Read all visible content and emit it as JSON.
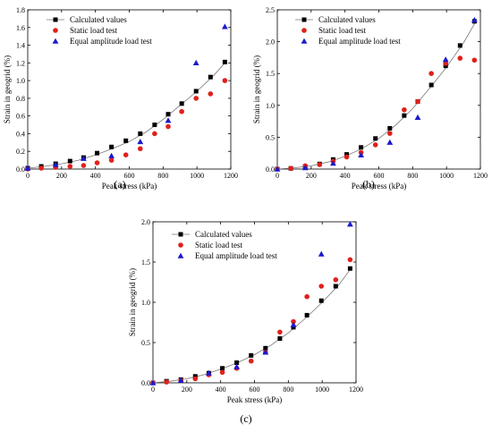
{
  "chart_data": [
    {
      "type": "scatter",
      "panel_label": "(a)",
      "xlabel": "Peak stress (kPa)",
      "ylabel": "Strain in geogrid (%)",
      "xlim": [
        0,
        1200
      ],
      "ylim": [
        0,
        1.8
      ],
      "xticks": [
        "0",
        "200",
        "400",
        "600",
        "800",
        "1000",
        "1200"
      ],
      "yticks": [
        "0.0",
        "0.2",
        "0.4",
        "0.6",
        "0.8",
        "1.0",
        "1.2",
        "1.4",
        "1.6",
        "1.8"
      ],
      "legend_position": "top-left",
      "grid": false,
      "fit_curve": {
        "x": [
          0,
          100,
          200,
          300,
          400,
          500,
          600,
          700,
          800,
          900,
          1000,
          1100,
          1170
        ],
        "y": [
          0.01,
          0.03,
          0.06,
          0.1,
          0.16,
          0.23,
          0.31,
          0.42,
          0.56,
          0.72,
          0.88,
          1.06,
          1.21
        ]
      },
      "series": [
        {
          "name": "Calculated values",
          "marker": "square",
          "color": "#000000",
          "x": [
            0,
            80,
            165,
            250,
            330,
            410,
            495,
            580,
            665,
            750,
            830,
            910,
            995,
            1080,
            1165
          ],
          "y": [
            0.01,
            0.03,
            0.06,
            0.09,
            0.13,
            0.18,
            0.25,
            0.32,
            0.4,
            0.5,
            0.62,
            0.74,
            0.88,
            1.04,
            1.21
          ]
        },
        {
          "name": "Static load test",
          "marker": "circle",
          "color": "#e0201c",
          "x": [
            0,
            80,
            165,
            250,
            330,
            410,
            495,
            580,
            665,
            750,
            830,
            910,
            995,
            1080,
            1165
          ],
          "y": [
            0.0,
            0.01,
            0.02,
            0.03,
            0.04,
            0.07,
            0.1,
            0.16,
            0.23,
            0.4,
            0.48,
            0.65,
            0.8,
            0.85,
            1.0
          ]
        },
        {
          "name": "Equal amplitude load test",
          "marker": "triangle",
          "color": "#1a1acc",
          "x": [
            0,
            165,
            330,
            495,
            665,
            830,
            995,
            1165
          ],
          "y": [
            0.01,
            0.05,
            0.12,
            0.15,
            0.31,
            0.55,
            1.2,
            1.61
          ]
        }
      ]
    },
    {
      "type": "scatter",
      "panel_label": "(b)",
      "xlabel": "Peak stress (kPa)",
      "ylabel": "Strain in geogrid (%)",
      "xlim": [
        0,
        1200
      ],
      "ylim": [
        0,
        2.5
      ],
      "xticks": [
        "0",
        "200",
        "400",
        "600",
        "800",
        "1000",
        "1200"
      ],
      "yticks": [
        "0.0",
        "0.5",
        "1.0",
        "1.5",
        "2.0",
        "2.5"
      ],
      "legend_position": "top-left",
      "grid": false,
      "fit_curve": {
        "x": [
          0,
          100,
          200,
          300,
          400,
          500,
          600,
          700,
          800,
          900,
          1000,
          1100,
          1170
        ],
        "y": [
          0.0,
          0.02,
          0.05,
          0.11,
          0.2,
          0.32,
          0.48,
          0.69,
          0.95,
          1.27,
          1.6,
          1.98,
          2.3
        ]
      },
      "series": [
        {
          "name": "Calculated values",
          "marker": "square",
          "color": "#000000",
          "x": [
            0,
            80,
            165,
            250,
            330,
            410,
            495,
            580,
            665,
            750,
            830,
            910,
            995,
            1080,
            1165
          ],
          "y": [
            0.0,
            0.01,
            0.04,
            0.08,
            0.15,
            0.23,
            0.34,
            0.48,
            0.64,
            0.84,
            1.06,
            1.32,
            1.62,
            1.94,
            2.32
          ]
        },
        {
          "name": "Static load test",
          "marker": "circle",
          "color": "#e0201c",
          "x": [
            0,
            80,
            165,
            250,
            330,
            410,
            495,
            580,
            665,
            750,
            830,
            910,
            995,
            1080,
            1165
          ],
          "y": [
            0.0,
            0.01,
            0.05,
            0.07,
            0.12,
            0.19,
            0.26,
            0.38,
            0.56,
            0.93,
            1.06,
            1.5,
            1.66,
            1.74,
            1.71
          ]
        },
        {
          "name": "Equal amplitude load test",
          "marker": "triangle",
          "color": "#1a1acc",
          "x": [
            0,
            165,
            330,
            495,
            665,
            830,
            995,
            1165
          ],
          "y": [
            0.0,
            0.02,
            0.09,
            0.22,
            0.42,
            0.81,
            1.72,
            2.34
          ]
        }
      ]
    },
    {
      "type": "scatter",
      "panel_label": "(c)",
      "xlabel": "Peak stress (kPa)",
      "ylabel": "Strain in geogrid (%)",
      "xlim": [
        0,
        1200
      ],
      "ylim": [
        0,
        2.0
      ],
      "xticks": [
        "0",
        "200",
        "400",
        "600",
        "800",
        "1000",
        "1200"
      ],
      "yticks": [
        "0.0",
        "0.5",
        "1.0",
        "1.5",
        "2.0"
      ],
      "legend_position": "top-left",
      "grid": false,
      "fit_curve": {
        "x": [
          0,
          100,
          200,
          300,
          400,
          500,
          600,
          700,
          800,
          900,
          1000,
          1100,
          1170
        ],
        "y": [
          0.0,
          0.02,
          0.05,
          0.1,
          0.17,
          0.25,
          0.35,
          0.47,
          0.62,
          0.8,
          1.0,
          1.22,
          1.42
        ]
      },
      "series": [
        {
          "name": "Calculated values",
          "marker": "square",
          "color": "#000000",
          "x": [
            0,
            80,
            165,
            250,
            330,
            410,
            495,
            580,
            665,
            750,
            830,
            910,
            995,
            1080,
            1165
          ],
          "y": [
            0.0,
            0.02,
            0.04,
            0.08,
            0.12,
            0.18,
            0.25,
            0.34,
            0.43,
            0.55,
            0.69,
            0.84,
            1.02,
            1.2,
            1.42
          ]
        },
        {
          "name": "Static load test",
          "marker": "circle",
          "color": "#e0201c",
          "x": [
            0,
            80,
            165,
            250,
            330,
            410,
            495,
            580,
            665,
            750,
            830,
            910,
            995,
            1080,
            1165
          ],
          "y": [
            0.0,
            0.01,
            0.03,
            0.05,
            0.1,
            0.13,
            0.18,
            0.27,
            0.38,
            0.63,
            0.76,
            1.07,
            1.2,
            1.28,
            1.53
          ]
        },
        {
          "name": "Equal amplitude load test",
          "marker": "triangle",
          "color": "#1a1acc",
          "x": [
            0,
            165,
            330,
            495,
            665,
            830,
            995,
            1165
          ],
          "y": [
            0.0,
            0.03,
            0.12,
            0.2,
            0.38,
            0.72,
            1.6,
            1.97
          ]
        }
      ]
    }
  ]
}
